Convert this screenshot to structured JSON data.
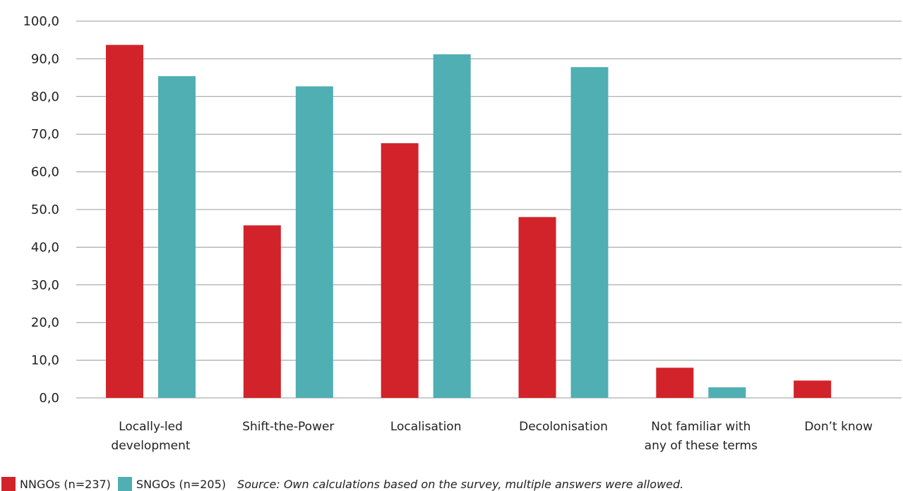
{
  "chart_data": {
    "type": "bar",
    "categories": [
      [
        "Locally-led",
        "development"
      ],
      [
        "Shift-the-Power"
      ],
      [
        "Localisation"
      ],
      [
        "Decolonisation"
      ],
      [
        "Not familiar with",
        "any of these terms"
      ],
      [
        "Don’t know"
      ]
    ],
    "series": [
      {
        "name": "NNGOs (n=237)",
        "color": "#d2232a",
        "values": [
          93.7,
          45.8,
          67.6,
          48.0,
          8.0,
          4.6
        ]
      },
      {
        "name": "SNGOs (n=205)",
        "color": "#4fafb3",
        "values": [
          85.4,
          82.7,
          91.2,
          87.8,
          2.8,
          0.0
        ]
      }
    ],
    "ylim": [
      0,
      100
    ],
    "yticks": [
      {
        "value": 0,
        "label": "0,0"
      },
      {
        "value": 10,
        "label": "10,0"
      },
      {
        "value": 20,
        "label": "20,0"
      },
      {
        "value": 30,
        "label": "30,0"
      },
      {
        "value": 40,
        "label": "40,0"
      },
      {
        "value": 50,
        "label": "50.0"
      },
      {
        "value": 60,
        "label": "60,0"
      },
      {
        "value": 70,
        "label": "70,0"
      },
      {
        "value": 80,
        "label": "80,0"
      },
      {
        "value": 90,
        "label": "90,0"
      },
      {
        "value": 100,
        "label": "100,0"
      }
    ],
    "grid": true,
    "legend_placement": "bottom-left"
  },
  "legend": {
    "nngos_label": "NNGOs (n=237)",
    "sngos_label": "SNGOs (n=205)",
    "nngos_color": "#d2232a",
    "sngos_color": "#4fafb3"
  },
  "source_note": "Source: Own calculations based on the survey, multiple answers were allowed."
}
